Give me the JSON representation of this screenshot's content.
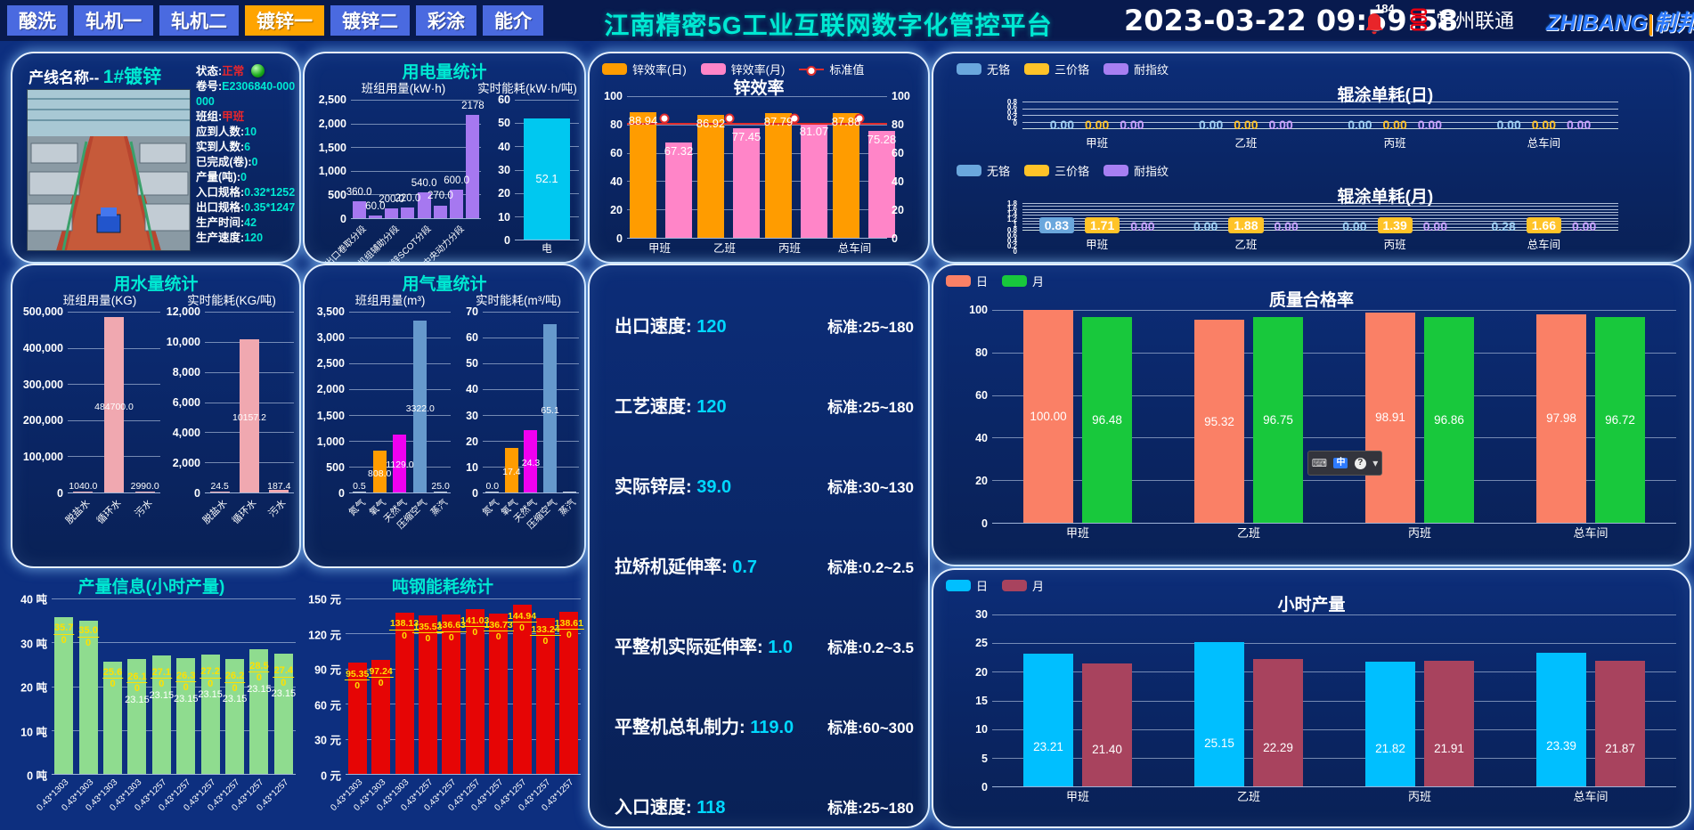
{
  "header": {
    "tabs": [
      {
        "label": "酸洗",
        "active": false
      },
      {
        "label": "轧机一",
        "active": false
      },
      {
        "label": "轧机二",
        "active": false
      },
      {
        "label": "镀锌一",
        "active": true
      },
      {
        "label": "镀锌二",
        "active": false
      },
      {
        "label": "彩涂",
        "active": false
      },
      {
        "label": "能介",
        "active": false
      }
    ],
    "title": "江南精密5G工业互联网数字化管控平台",
    "datetime": "2023-03-22 09:59:58",
    "alarm_count": "184",
    "operator": "常州联通",
    "brand_left": "ZHIBANG",
    "brand_sep": "|",
    "brand_right": "制邦",
    "accent_orange": "#ffa400",
    "accent_cyan": "#00e8d2"
  },
  "line_panel": {
    "name_label": "产线名称--",
    "name_value": "1#镀锌",
    "rows": [
      {
        "label": "状态:",
        "value": "正常",
        "color": "red",
        "orb": true
      },
      {
        "label": "卷号:",
        "value": "E2306840-000000",
        "color": "cyan"
      },
      {
        "label": "班组:",
        "value": "甲班",
        "color": "red"
      },
      {
        "label": "应到人数:",
        "value": "10",
        "color": "cyan"
      },
      {
        "label": "实到人数:",
        "value": "6",
        "color": "cyan"
      },
      {
        "label": "已完成(卷):",
        "value": "0",
        "color": "cyan"
      },
      {
        "label": "产量(吨):",
        "value": "0",
        "color": "cyan"
      },
      {
        "label": "入口规格:",
        "value": "0.32*1252",
        "color": "cyan"
      },
      {
        "label": "出口规格:",
        "value": "0.35*1247",
        "color": "cyan"
      },
      {
        "label": "生产时间:",
        "value": "42",
        "color": "cyan"
      },
      {
        "label": "生产速度:",
        "value": "120",
        "color": "cyan"
      }
    ]
  },
  "panel_titles": {
    "electricity": "用电量统计",
    "water": "用水量统计",
    "gas": "用气量统计",
    "production": "产量信息(小时产量)",
    "ton_energy": "吨钢能耗统计",
    "zinc": "锌效率",
    "roller_day": "辊涂单耗(日)",
    "roller_month": "辊涂单耗(月)",
    "quality": "质量合格率",
    "hourly": "小时产量"
  },
  "metrics_panel": {
    "rows": [
      {
        "label": "出口速度:",
        "value": "120",
        "std": "标准:25~180"
      },
      {
        "label": "工艺速度:",
        "value": "120",
        "std": "标准:25~180"
      },
      {
        "label": "实际锌层:",
        "value": "39.0",
        "std": "标准:30~130"
      },
      {
        "label": "拉矫机延伸率:",
        "value": "0.7",
        "std": "标准:0.2~2.5"
      },
      {
        "label": "平整机实际延伸率:",
        "value": "1.0",
        "std": "标准:0.2~3.5"
      },
      {
        "label": "平整机总轧制力:",
        "value": "119.0",
        "std": "标准:60~300"
      },
      {
        "label": "入口速度:",
        "value": "118",
        "std": "标准:25~180"
      }
    ]
  },
  "imtoolbar": {
    "keyboard": "⌨",
    "lang": "中",
    "help": "?",
    "more": "▾"
  },
  "chart_data": {
    "electricity_team": {
      "type": "bar",
      "subtitle": "班组用量(kW·h)",
      "categories": [
        "出口卷取分段",
        "",
        "机组辅助分段",
        "",
        "镀锌SCOT分段",
        "",
        "中央动力分段",
        ""
      ],
      "values": [
        360.0,
        60.0,
        200.0,
        220.0,
        540.0,
        270.0,
        600.0,
        2178
      ],
      "labels": [
        "360.0",
        "60.0",
        "200.0",
        "220.0",
        "540.0",
        "270.0",
        "600.0",
        "2178"
      ],
      "ylim": [
        0,
        2500
      ],
      "yticks": [
        "2,500",
        "2,000",
        "1,500",
        "1,000",
        "500",
        "0"
      ],
      "color": "#a678f0"
    },
    "electricity_realtime": {
      "type": "bar",
      "subtitle": "实时能耗(kW·h/吨)",
      "categories": [
        "电"
      ],
      "values": [
        52.1
      ],
      "labels": [
        "52.1"
      ],
      "ylim": [
        0,
        60
      ],
      "yticks": [
        "60",
        "50",
        "40",
        "30",
        "20",
        "10",
        "0"
      ],
      "color": "#00c8f0"
    },
    "zinc_efficiency": {
      "type": "grouped_bar",
      "categories": [
        "甲班",
        "乙班",
        "丙班",
        "总车间"
      ],
      "series": [
        {
          "name": "锌效率(日)",
          "color": "#ff9c00",
          "values": [
            88.94,
            86.92,
            87.79,
            87.88
          ]
        },
        {
          "name": "锌效率(月)",
          "color": "#ff85c8",
          "values": [
            67.32,
            77.45,
            81.07,
            75.28
          ]
        }
      ],
      "standard": {
        "name": "标准值",
        "value": 80,
        "color": "#df2b2b"
      },
      "ylim": [
        0,
        100
      ],
      "yticks": [
        "100",
        "80",
        "60",
        "40",
        "20",
        "0"
      ]
    },
    "roller_day": {
      "type": "label_row",
      "legend": [
        {
          "label": "无铬",
          "color": "#6aa7dd"
        },
        {
          "label": "三价铬",
          "color": "#ffc328"
        },
        {
          "label": "耐指纹",
          "color": "#a77ff2"
        }
      ],
      "yticks": [
        "0.8",
        "0.6",
        "0.4",
        "0.2",
        "0"
      ],
      "categories": [
        "甲班",
        "乙班",
        "丙班",
        "总车间"
      ],
      "groups": [
        [
          {
            "v": "0.00"
          },
          {
            "v": "0.00"
          },
          {
            "v": "0.00"
          }
        ],
        [
          {
            "v": "0.00"
          },
          {
            "v": "0.00"
          },
          {
            "v": "0.00"
          }
        ],
        [
          {
            "v": "0.00"
          },
          {
            "v": "0.00"
          },
          {
            "v": "0.00"
          }
        ],
        [
          {
            "v": "0.00"
          },
          {
            "v": "0.00"
          },
          {
            "v": "0.00"
          }
        ]
      ]
    },
    "roller_month": {
      "type": "label_row",
      "legend": [
        {
          "label": "无铬",
          "color": "#6aa7dd"
        },
        {
          "label": "三价铬",
          "color": "#ffc328"
        },
        {
          "label": "耐指纹",
          "color": "#a77ff2"
        }
      ],
      "yticks": [
        "1.8",
        "1.6",
        "1.4",
        "1.2",
        "1",
        "0.8",
        "0.6",
        "0.4",
        "0.2",
        "0"
      ],
      "categories": [
        "甲班",
        "乙班",
        "丙班",
        "总车间"
      ],
      "groups": [
        [
          {
            "v": "0.83",
            "chip": true
          },
          {
            "v": "1.71",
            "chip": true
          },
          {
            "v": "0.00"
          }
        ],
        [
          {
            "v": "0.00"
          },
          {
            "v": "1.88",
            "chip": true
          },
          {
            "v": "0.00"
          }
        ],
        [
          {
            "v": "0.00"
          },
          {
            "v": "1.39",
            "chip": true
          },
          {
            "v": "0.00"
          }
        ],
        [
          {
            "v": "0.28"
          },
          {
            "v": "1.66",
            "chip": true
          },
          {
            "v": "0.00"
          }
        ]
      ]
    },
    "water_team": {
      "type": "bar",
      "subtitle": "班组用量(KG)",
      "categories": [
        "脱盐水",
        "循环水",
        "污水"
      ],
      "values": [
        1040.0,
        484700.0,
        2990.0
      ],
      "labels": [
        "1040.0",
        "484700.0",
        "2990.0"
      ],
      "ylim": [
        0,
        500000
      ],
      "yticks": [
        "500,000",
        "400,000",
        "300,000",
        "200,000",
        "100,000",
        "0"
      ],
      "color": "#f0a8b0"
    },
    "water_realtime": {
      "type": "bar",
      "subtitle": "实时能耗(KG/吨)",
      "categories": [
        "脱盐水",
        "循环水",
        "污水"
      ],
      "values": [
        24.5,
        10157.2,
        187.4
      ],
      "labels": [
        "24.5",
        "10157.2",
        "187.4"
      ],
      "ylim": [
        0,
        12000
      ],
      "yticks": [
        "12,000",
        "10,000",
        "8,000",
        "6,000",
        "4,000",
        "2,000",
        "0"
      ],
      "color": "#f0a8b0"
    },
    "gas_team": {
      "type": "bar",
      "subtitle": "班组用量(m³)",
      "categories": [
        "氮气",
        "氧气",
        "天然气",
        "压缩空气",
        "蒸汽"
      ],
      "values": [
        0.5,
        808.0,
        1129.0,
        3322.0,
        25.0
      ],
      "labels": [
        "0.5",
        "808.0",
        "1129.0",
        "3322.0",
        "25.0"
      ],
      "ylim": [
        0,
        3500
      ],
      "yticks": [
        "3,500",
        "3,000",
        "2,500",
        "2,000",
        "1,500",
        "1,000",
        "500",
        "0"
      ],
      "colors": [
        "#c8d0dc",
        "#ff9c00",
        "#f000f0",
        "#6699cc",
        "#c8d0dc"
      ]
    },
    "gas_realtime": {
      "type": "bar",
      "subtitle": "实时能耗(m³/吨)",
      "categories": [
        "氮气",
        "氧气",
        "天然气",
        "压缩空气",
        "蒸汽"
      ],
      "values": [
        0.0,
        17.4,
        24.3,
        65.1,
        0.0
      ],
      "labels": [
        "0.0",
        "17.4",
        "24.3",
        "65.1",
        ""
      ],
      "ylim": [
        0,
        70
      ],
      "yticks": [
        "70",
        "60",
        "50",
        "40",
        "30",
        "20",
        "10",
        "0"
      ],
      "colors": [
        "#c8d0dc",
        "#ff9c00",
        "#f000f0",
        "#6699cc",
        "#c8d0dc"
      ]
    },
    "quality_rate": {
      "type": "grouped_bar",
      "categories": [
        "甲班",
        "乙班",
        "丙班",
        "总车间"
      ],
      "series": [
        {
          "name": "日",
          "color": "#fa8066",
          "values": [
            100.0,
            95.32,
            98.91,
            97.98
          ]
        },
        {
          "name": "月",
          "color": "#18c83c",
          "values": [
            96.48,
            96.75,
            96.86,
            96.72
          ]
        }
      ],
      "labels": [
        [
          "100.00",
          "96.48"
        ],
        [
          "95.32",
          "96.75"
        ],
        [
          "98.91",
          "96.86"
        ],
        [
          "97.98",
          "96.72"
        ]
      ],
      "ylim": [
        0,
        100
      ],
      "yticks": [
        "100",
        "80",
        "60",
        "40",
        "20",
        "0"
      ]
    },
    "hourly_output": {
      "type": "grouped_bar",
      "categories": [
        "甲班",
        "乙班",
        "丙班",
        "总车间"
      ],
      "series": [
        {
          "name": "日",
          "color": "#00bfff",
          "values": [
            23.21,
            25.15,
            21.82,
            23.39
          ]
        },
        {
          "name": "月",
          "color": "#a8435e",
          "values": [
            21.4,
            22.29,
            21.91,
            21.87
          ]
        }
      ],
      "labels": [
        [
          "23.21",
          "21.40"
        ],
        [
          "25.15",
          "22.29"
        ],
        [
          "21.82",
          "21.91"
        ],
        [
          "23.39",
          "21.87"
        ]
      ],
      "ylim": [
        0,
        30
      ],
      "yticks": [
        "30",
        "25",
        "20",
        "15",
        "10",
        "5",
        "0"
      ]
    },
    "production_info": {
      "type": "bar_frac",
      "categories": [
        "0.43*1303",
        "0.43*1303",
        "0.43*1303",
        "0.43*1303",
        "0.43*1257",
        "0.43*1257",
        "0.43*1257",
        "0.43*1257",
        "0.43*1257",
        "0.43*1257"
      ],
      "values": [
        35.7,
        35.0,
        25.6,
        26.1,
        27.1,
        26.3,
        27.2,
        26.2,
        28.5,
        27.4
      ],
      "frac_top": [
        "35.7",
        "35.0",
        "25.6",
        "26.1",
        "27.1",
        "26.3",
        "27.2",
        "26.2",
        "28.5",
        "27.4"
      ],
      "frac_bottom": "0",
      "extras": [
        "",
        "",
        "",
        "23.15",
        "23.15",
        "23.15",
        "23.15",
        "23.15",
        "23.15",
        "23.15"
      ],
      "ylim": [
        0,
        40
      ],
      "yticks": [
        "40 吨",
        "30 吨",
        "20 吨",
        "10 吨",
        "0 吨"
      ],
      "color": "#8fdc8f",
      "label_color": "#ffe000"
    },
    "ton_steel_energy": {
      "type": "bar_frac",
      "categories": [
        "0.43*1303",
        "0.43*1303",
        "0.43*1303",
        "0.43*1257",
        "0.43*1257",
        "0.43*1257",
        "0.43*1257",
        "0.43*1257",
        "0.43*1257",
        "0.43*1257"
      ],
      "values": [
        95.35,
        97.24,
        138.13,
        135.53,
        136.63,
        141.03,
        136.73,
        144.94,
        133.24,
        138.61
      ],
      "frac_top": [
        "95.35",
        "97.24",
        "138.13",
        "135.53",
        "136.63",
        "141.03",
        "136.73",
        "144.94",
        "133.24",
        "138.61"
      ],
      "frac_bottom": "0",
      "extras": [
        "",
        "",
        "",
        "",
        "",
        "",
        "",
        "",
        "",
        ""
      ],
      "ylim": [
        0,
        150
      ],
      "yticks": [
        "150 元",
        "120 元",
        "90 元",
        "60 元",
        "30 元",
        "0 元"
      ],
      "color": "#e60505",
      "label_color": "#ffe000"
    }
  }
}
